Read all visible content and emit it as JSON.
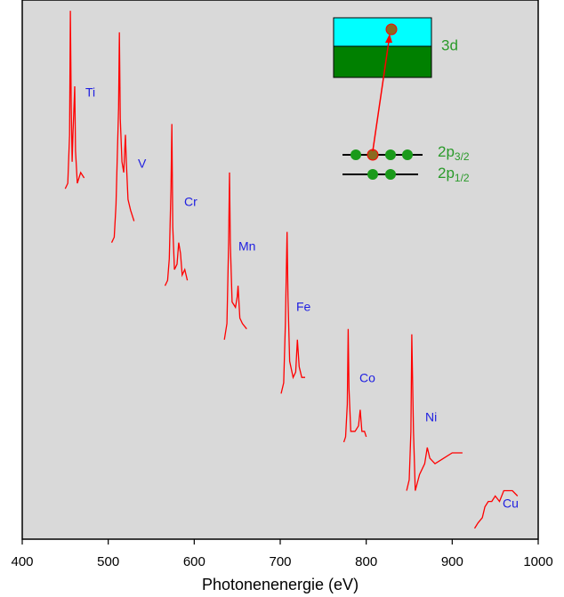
{
  "chart_data": {
    "type": "line",
    "xlabel": "Photonenenergie (eV)",
    "xlim": [
      400,
      1000
    ],
    "xticks": [
      400,
      500,
      600,
      700,
      800,
      900,
      1000
    ],
    "ylim": [
      0,
      100
    ],
    "series": [
      {
        "name": "Ti",
        "color": "#ff0000",
        "x": [
          450,
          453,
          455,
          456,
          457,
          458,
          459,
          461,
          462,
          464,
          468,
          472
        ],
        "values": [
          65,
          66,
          75,
          98,
          80,
          70,
          75,
          84,
          72,
          66,
          68,
          67
        ]
      },
      {
        "name": "V",
        "color": "#ff0000",
        "x": [
          504,
          507,
          509,
          512,
          513,
          514,
          516,
          518,
          520,
          521,
          523,
          526,
          530
        ],
        "values": [
          55,
          56,
          62,
          80,
          94,
          78,
          70,
          68,
          75,
          70,
          63,
          61,
          59
        ]
      },
      {
        "name": "Cr",
        "color": "#ff0000",
        "x": [
          566,
          569,
          571,
          573,
          574,
          575,
          577,
          580,
          582,
          584,
          586,
          589,
          592
        ],
        "values": [
          47,
          48,
          52,
          65,
          77,
          58,
          50,
          51,
          55,
          53,
          49,
          50,
          48
        ]
      },
      {
        "name": "Mn",
        "color": "#ff0000",
        "x": [
          635,
          638,
          640,
          641,
          642,
          644,
          648,
          650,
          651,
          653,
          656,
          661
        ],
        "values": [
          37,
          40,
          55,
          68,
          55,
          44,
          43,
          45,
          47,
          41,
          40,
          39
        ]
      },
      {
        "name": "Fe",
        "color": "#ff0000",
        "x": [
          701,
          704,
          706,
          708,
          709,
          711,
          715,
          718,
          720,
          722,
          725,
          729
        ],
        "values": [
          27,
          29,
          40,
          57,
          45,
          33,
          30,
          31,
          37,
          32,
          30,
          30
        ]
      },
      {
        "name": "Co",
        "color": "#ff0000",
        "x": [
          774,
          776,
          778,
          779,
          780,
          782,
          787,
          791,
          793,
          795,
          798,
          800
        ],
        "values": [
          18,
          19,
          25,
          39,
          28,
          20,
          20,
          21,
          24,
          20,
          20,
          19
        ]
      },
      {
        "name": "Ni",
        "color": "#ff0000",
        "x": [
          847,
          850,
          852,
          853,
          855,
          857,
          862,
          868,
          871,
          874,
          880,
          890,
          900,
          912
        ],
        "values": [
          9,
          11,
          20,
          38,
          20,
          9,
          12,
          14,
          17,
          15,
          14,
          15,
          16,
          16
        ]
      },
      {
        "name": "Cu",
        "color": "#ff0000",
        "x": [
          926,
          930,
          935,
          938,
          942,
          946,
          950,
          955,
          960,
          965,
          970,
          976
        ],
        "values": [
          2,
          3,
          4,
          6,
          7,
          7,
          8,
          7,
          9,
          9,
          9,
          8
        ]
      }
    ],
    "annotations": {
      "level_3d": "3d",
      "level_2p32": {
        "main": "2p",
        "sub": "3/2"
      },
      "level_2p12": {
        "main": "2p",
        "sub": "1/2"
      }
    }
  }
}
